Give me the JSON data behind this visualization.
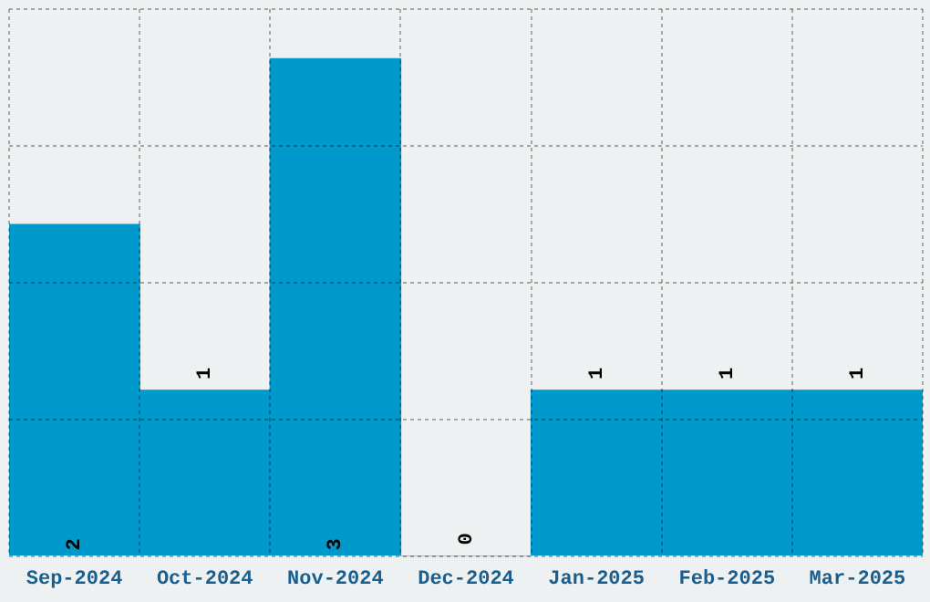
{
  "chart_data": {
    "type": "bar",
    "categories": [
      "Sep-2024",
      "Oct-2024",
      "Nov-2024",
      "Dec-2024",
      "Jan-2025",
      "Feb-2025",
      "Mar-2025"
    ],
    "values": [
      2,
      1,
      3,
      0,
      1,
      1,
      1
    ],
    "color": "#0099cc",
    "ylim": [
      0,
      3.3
    ],
    "grid": true,
    "tick_labels": "x",
    "data_labels": true
  }
}
